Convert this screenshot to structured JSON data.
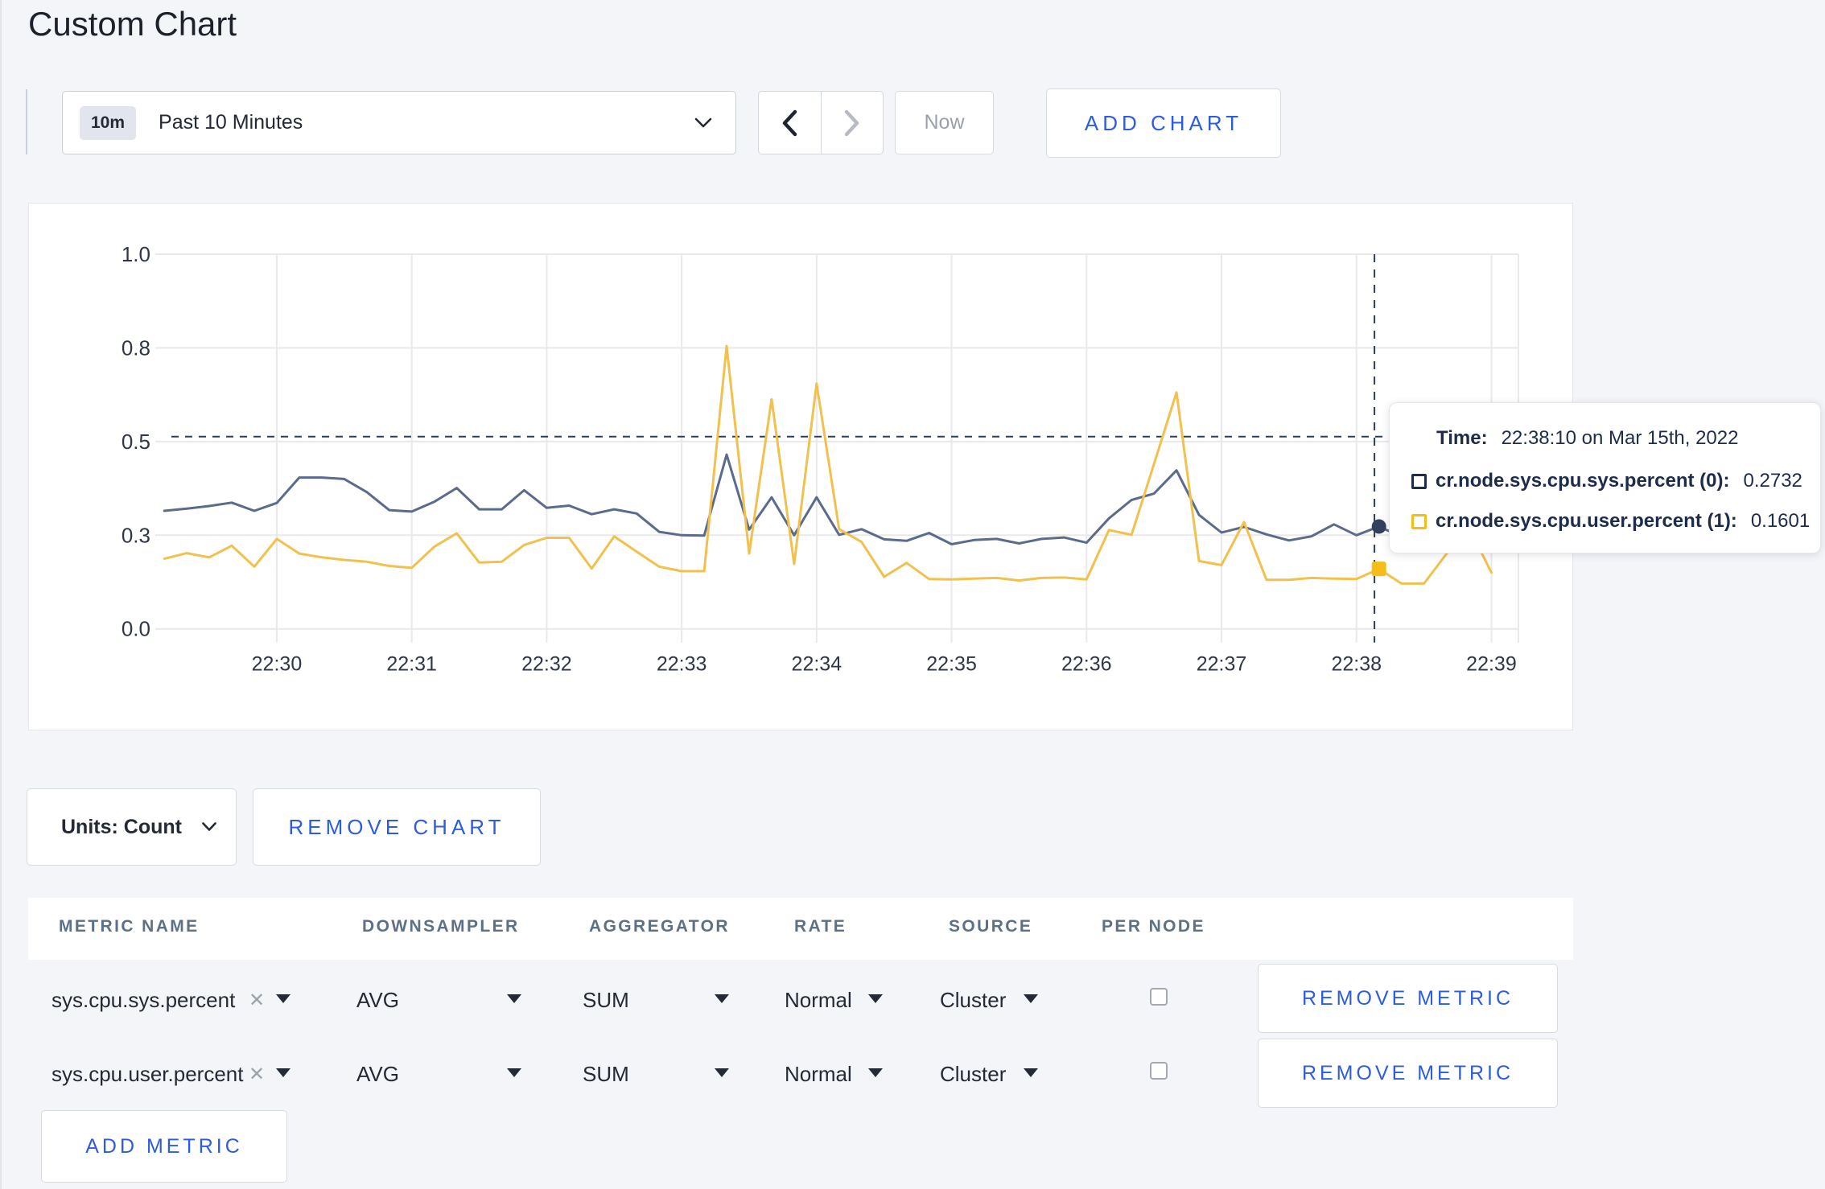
{
  "page": {
    "title": "Custom Chart",
    "background_color": "#f4f5f9",
    "accent_blue": "#2c5ce2"
  },
  "toolbar": {
    "time_window_badge": "10m",
    "time_window_label": "Past 10 Minutes",
    "now_label": "Now",
    "add_chart_label": "ADD CHART",
    "prev_enabled": true,
    "next_enabled": false
  },
  "chart_controls": {
    "units_label": "Units: Count",
    "remove_chart_label": "REMOVE CHART"
  },
  "tooltip": {
    "time_label": "Time:",
    "time_value": "22:38:10 on Mar 15th, 2022",
    "rows": [
      {
        "label": "cr.node.sys.cpu.sys.percent (0):",
        "value": "0.2732",
        "color": "#1d2c4c"
      },
      {
        "label": "cr.node.sys.cpu.user.percent (1):",
        "value": "0.1601",
        "color": "#f5bd18"
      }
    ]
  },
  "metrics_table": {
    "headers": [
      "METRIC NAME",
      "DOWNSAMPLER",
      "AGGREGATOR",
      "RATE",
      "SOURCE",
      "PER NODE"
    ],
    "remove_metric_label": "REMOVE METRIC",
    "add_metric_label": "ADD METRIC",
    "rows": [
      {
        "metric": "sys.cpu.sys.percent",
        "downsampler": "AVG",
        "aggregator": "SUM",
        "rate": "Normal",
        "source": "Cluster",
        "per_node_checked": false
      },
      {
        "metric": "sys.cpu.user.percent",
        "downsampler": "AVG",
        "aggregator": "SUM",
        "rate": "Normal",
        "source": "Cluster",
        "per_node_checked": false
      }
    ]
  },
  "chart_data": {
    "type": "line",
    "title": "",
    "xlabel": "",
    "ylabel": "",
    "ylim": [
      0,
      1
    ],
    "y_ticks": [
      {
        "label": "0.0",
        "value": 0
      },
      {
        "label": "0.3",
        "value": 0.25
      },
      {
        "label": "0.5",
        "value": 0.5
      },
      {
        "label": "0.8",
        "value": 0.75
      },
      {
        "label": "1.0",
        "value": 1.0
      }
    ],
    "x_ticks": [
      "22:30",
      "22:31",
      "22:32",
      "22:33",
      "22:34",
      "22:35",
      "22:36",
      "22:37",
      "22:38",
      "22:39"
    ],
    "x_domain": [
      "22:29:06",
      "22:39:12"
    ],
    "x_start": "22:29:10",
    "x_step_seconds": 10,
    "grid": true,
    "legend_position": "tooltip",
    "series": [
      {
        "name": "cr.node.sys.cpu.sys.percent",
        "color": "#5a6b8c",
        "values": [
          0.315,
          0.321,
          0.328,
          0.337,
          0.315,
          0.336,
          0.404,
          0.404,
          0.4,
          0.365,
          0.317,
          0.313,
          0.339,
          0.376,
          0.319,
          0.319,
          0.37,
          0.323,
          0.329,
          0.306,
          0.319,
          0.308,
          0.259,
          0.25,
          0.249,
          0.465,
          0.265,
          0.351,
          0.25,
          0.351,
          0.251,
          0.266,
          0.239,
          0.235,
          0.256,
          0.226,
          0.237,
          0.24,
          0.228,
          0.24,
          0.244,
          0.23,
          0.295,
          0.344,
          0.361,
          0.423,
          0.304,
          0.257,
          0.272,
          0.252,
          0.236,
          0.247,
          0.279,
          0.25,
          0.2732,
          0.246,
          0.252,
          0.27,
          0.29,
          0.305
        ]
      },
      {
        "name": "cr.node.sys.cpu.user.percent",
        "color": "#f2c14d",
        "values": [
          0.187,
          0.202,
          0.191,
          0.222,
          0.166,
          0.24,
          0.201,
          0.191,
          0.184,
          0.179,
          0.168,
          0.163,
          0.219,
          0.255,
          0.177,
          0.179,
          0.224,
          0.243,
          0.243,
          0.161,
          0.247,
          0.206,
          0.166,
          0.154,
          0.154,
          0.755,
          0.201,
          0.613,
          0.173,
          0.655,
          0.266,
          0.232,
          0.139,
          0.176,
          0.133,
          0.132,
          0.134,
          0.136,
          0.129,
          0.136,
          0.137,
          0.132,
          0.264,
          0.251,
          0.44,
          0.631,
          0.181,
          0.17,
          0.285,
          0.131,
          0.131,
          0.136,
          0.134,
          0.133,
          0.1601,
          0.121,
          0.121,
          0.2,
          0.27,
          0.15
        ]
      }
    ],
    "crosshair": {
      "time": "22:38:10",
      "guide_x_time": "22:38:08",
      "guide_y_value": 0.513,
      "points": [
        {
          "series": 0,
          "value": 0.2732,
          "marker": "circle",
          "color": "#31415e"
        },
        {
          "series": 1,
          "value": 0.1601,
          "marker": "square",
          "color": "#f5bd18"
        }
      ]
    }
  }
}
